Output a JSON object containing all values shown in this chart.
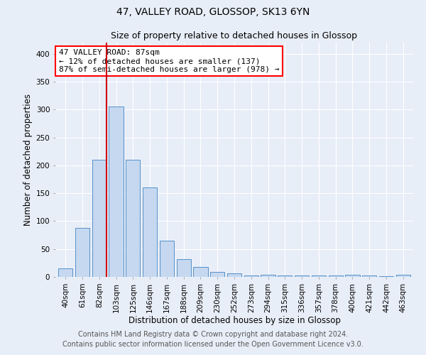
{
  "title": "47, VALLEY ROAD, GLOSSOP, SK13 6YN",
  "subtitle": "Size of property relative to detached houses in Glossop",
  "xlabel": "Distribution of detached houses by size in Glossop",
  "ylabel": "Number of detached properties",
  "bar_labels": [
    "40sqm",
    "61sqm",
    "82sqm",
    "103sqm",
    "125sqm",
    "146sqm",
    "167sqm",
    "188sqm",
    "209sqm",
    "230sqm",
    "252sqm",
    "273sqm",
    "294sqm",
    "315sqm",
    "336sqm",
    "357sqm",
    "378sqm",
    "400sqm",
    "421sqm",
    "442sqm",
    "463sqm"
  ],
  "bar_heights": [
    15,
    88,
    210,
    305,
    210,
    160,
    65,
    32,
    18,
    9,
    6,
    3,
    4,
    3,
    3,
    2,
    2,
    4,
    2,
    1,
    4
  ],
  "bar_color": "#c5d8f0",
  "bar_edge_color": "#5590c8",
  "red_line_index": 2,
  "annotation_text": "47 VALLEY ROAD: 87sqm\n← 12% of detached houses are smaller (137)\n87% of semi-detached houses are larger (978) →",
  "annotation_box_color": "white",
  "annotation_box_edge_color": "red",
  "red_line_color": "#cc0000",
  "ylim": [
    0,
    420
  ],
  "yticks": [
    0,
    50,
    100,
    150,
    200,
    250,
    300,
    350,
    400
  ],
  "footnote1": "Contains HM Land Registry data © Crown copyright and database right 2024.",
  "footnote2": "Contains public sector information licensed under the Open Government Licence v3.0.",
  "background_color": "#e8eef8",
  "plot_bg_color": "#e8eef8",
  "grid_color": "#ffffff",
  "title_fontsize": 10,
  "subtitle_fontsize": 9,
  "annotation_fontsize": 8,
  "axis_label_fontsize": 8.5,
  "tick_fontsize": 7.5,
  "footnote_fontsize": 7
}
